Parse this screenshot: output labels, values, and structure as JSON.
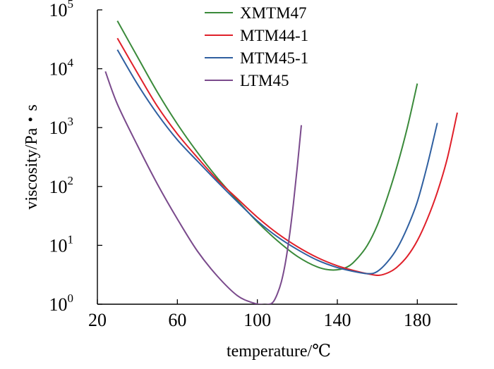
{
  "chart_data": {
    "type": "line",
    "xlabel": "temperature/℃",
    "ylabel": "viscosity/Pa・s",
    "xlim": [
      20,
      200
    ],
    "ylim": [
      1,
      100000
    ],
    "y_scale": "log",
    "x_ticks": [
      20,
      60,
      100,
      140,
      180
    ],
    "y_ticks": [
      {
        "value": 1,
        "base": "10",
        "exp": "0"
      },
      {
        "value": 10,
        "base": "10",
        "exp": "1"
      },
      {
        "value": 100,
        "base": "10",
        "exp": "2"
      },
      {
        "value": 1000,
        "base": "10",
        "exp": "3"
      },
      {
        "value": 10000,
        "base": "10",
        "exp": "4"
      },
      {
        "value": 100000,
        "base": "10",
        "exp": "5"
      }
    ],
    "grid": false,
    "legend_position": "top-right",
    "series": [
      {
        "name": "XMTM47",
        "color": "#3a8a3a",
        "x": [
          30,
          40,
          50,
          60,
          70,
          80,
          90,
          100,
          110,
          120,
          130,
          138,
          145,
          150,
          155,
          160,
          165,
          170,
          175,
          180
        ],
        "y": [
          65000,
          16000,
          4000,
          1150,
          380,
          140,
          58,
          25,
          12,
          6.5,
          4.3,
          3.8,
          4.3,
          6.0,
          10,
          22,
          65,
          230,
          1000,
          5600
        ]
      },
      {
        "name": "MTM44-1",
        "color": "#e0202a",
        "x": [
          30,
          40,
          50,
          60,
          70,
          80,
          90,
          100,
          110,
          120,
          130,
          140,
          150,
          156,
          161,
          166,
          170,
          175,
          180,
          185,
          190,
          195,
          200
        ],
        "y": [
          33000,
          8500,
          2300,
          780,
          310,
          130,
          62,
          30,
          16,
          9.5,
          6.2,
          4.5,
          3.6,
          3.25,
          3.1,
          3.5,
          4.3,
          6.5,
          12,
          28,
          80,
          300,
          1800
        ]
      },
      {
        "name": "MTM45-1",
        "color": "#2f5fa0",
        "x": [
          30,
          40,
          50,
          60,
          70,
          80,
          90,
          100,
          110,
          120,
          130,
          140,
          150,
          156,
          160,
          165,
          170,
          175,
          180,
          185,
          190
        ],
        "y": [
          21000,
          5500,
          1700,
          620,
          270,
          120,
          55,
          26,
          14,
          8.5,
          5.6,
          4.2,
          3.5,
          3.3,
          3.6,
          5.2,
          9,
          20,
          55,
          230,
          1200
        ]
      },
      {
        "name": "LTM45",
        "color": "#7a4a8c",
        "x": [
          24,
          30,
          40,
          50,
          60,
          70,
          80,
          90,
          98,
          103,
          106,
          108,
          110,
          112,
          114,
          116,
          118,
          120,
          122
        ],
        "y": [
          9000,
          2500,
          500,
          110,
          28,
          8,
          3,
          1.4,
          1.05,
          0.98,
          1.0,
          1.1,
          1.5,
          2.4,
          5,
          14,
          50,
          220,
          1100
        ]
      }
    ]
  }
}
